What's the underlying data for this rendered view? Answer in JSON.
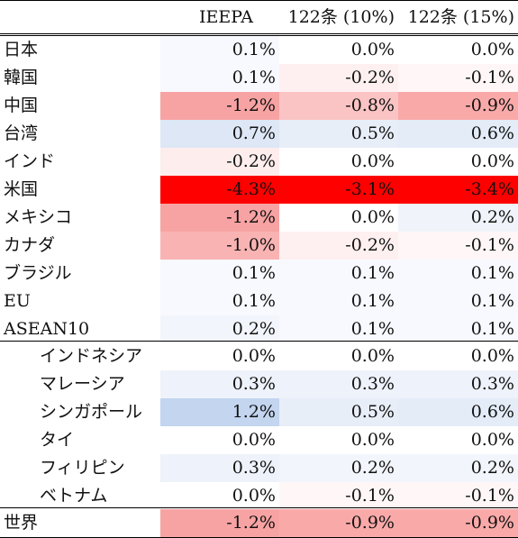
{
  "header": {
    "col1": "IEEPA",
    "col2": "122条 (10%)",
    "col3": "122条 (15%)"
  },
  "rows": [
    {
      "label": "日本",
      "v1": "0.1%",
      "v2": "0.0%",
      "v3": "0.0%",
      "bg1": "#f7f9fe",
      "bg2": "#ffffff",
      "bg3": "#ffffff"
    },
    {
      "label": "韓国",
      "v1": "0.1%",
      "v2": "-0.2%",
      "v3": "-0.1%",
      "bg1": "#f7f9fe",
      "bg2": "#fef0f0",
      "bg3": "#fff7f7"
    },
    {
      "label": "中国",
      "v1": "-1.2%",
      "v2": "-0.8%",
      "v3": "-0.9%",
      "bg1": "#f8a3a3",
      "bg2": "#fbc4c4",
      "bg3": "#faa9a9"
    },
    {
      "label": "台湾",
      "v1": "0.7%",
      "v2": "0.5%",
      "v3": "0.6%",
      "bg1": "#dde7f6",
      "bg2": "#e8eef8",
      "bg3": "#e4ecf8"
    },
    {
      "label": "インド",
      "v1": "-0.2%",
      "v2": "0.0%",
      "v3": "0.0%",
      "bg1": "#feeded",
      "bg2": "#ffffff",
      "bg3": "#ffffff"
    },
    {
      "label": "米国",
      "v1": "-4.3%",
      "v2": "-3.1%",
      "v3": "-3.4%",
      "bg1": "#ff0000",
      "bg2": "#ff0000",
      "bg3": "#ff0000"
    },
    {
      "label": "メキシコ",
      "v1": "-1.2%",
      "v2": "0.0%",
      "v3": "0.2%",
      "bg1": "#f8a3a3",
      "bg2": "#ffffff",
      "bg3": "#f0f4fa"
    },
    {
      "label": "カナダ",
      "v1": "-1.0%",
      "v2": "-0.2%",
      "v3": "-0.1%",
      "bg1": "#f9b3b3",
      "bg2": "#fef0f0",
      "bg3": "#fff7f7"
    },
    {
      "label": "ブラジル",
      "v1": "0.1%",
      "v2": "0.1%",
      "v3": "0.1%",
      "bg1": "#f7f9fe",
      "bg2": "#f7f9fe",
      "bg3": "#f7f9fe"
    },
    {
      "label": "EU",
      "v1": "0.1%",
      "v2": "0.1%",
      "v3": "0.1%",
      "bg1": "#f7f9fe",
      "bg2": "#f7f9fe",
      "bg3": "#f7f9fe"
    },
    {
      "label": "ASEAN10",
      "v1": "0.2%",
      "v2": "0.1%",
      "v3": "0.1%",
      "bg1": "#f2f5fb",
      "bg2": "#f7f9fe",
      "bg3": "#f7f9fe"
    },
    {
      "label": "インドネシア",
      "v1": "0.0%",
      "v2": "0.0%",
      "v3": "0.0%",
      "bg1": "#ffffff",
      "bg2": "#ffffff",
      "bg3": "#ffffff",
      "sub": true
    },
    {
      "label": "マレーシア",
      "v1": "0.3%",
      "v2": "0.3%",
      "v3": "0.3%",
      "bg1": "#eef2fa",
      "bg2": "#eef2fa",
      "bg3": "#eef2fa",
      "sub": true
    },
    {
      "label": "シンガポール",
      "v1": "1.2%",
      "v2": "0.5%",
      "v3": "0.6%",
      "bg1": "#c3d5ef",
      "bg2": "#e8eef8",
      "bg3": "#e4ecf8",
      "sub": true
    },
    {
      "label": "タイ",
      "v1": "0.0%",
      "v2": "0.0%",
      "v3": "0.0%",
      "bg1": "#ffffff",
      "bg2": "#ffffff",
      "bg3": "#ffffff",
      "sub": true
    },
    {
      "label": "フィリピン",
      "v1": "0.3%",
      "v2": "0.2%",
      "v3": "0.2%",
      "bg1": "#eef2fa",
      "bg2": "#f2f5fb",
      "bg3": "#f2f5fb",
      "sub": true
    },
    {
      "label": "ベトナム",
      "v1": "0.0%",
      "v2": "-0.1%",
      "v3": "-0.1%",
      "bg1": "#ffffff",
      "bg2": "#fff7f7",
      "bg3": "#fff7f7",
      "sub": true
    },
    {
      "label": "世界",
      "v1": "-1.2%",
      "v2": "-0.9%",
      "v3": "-0.9%",
      "bg1": "#f8a3a3",
      "bg2": "#faa9a9",
      "bg3": "#faa9a9"
    }
  ]
}
